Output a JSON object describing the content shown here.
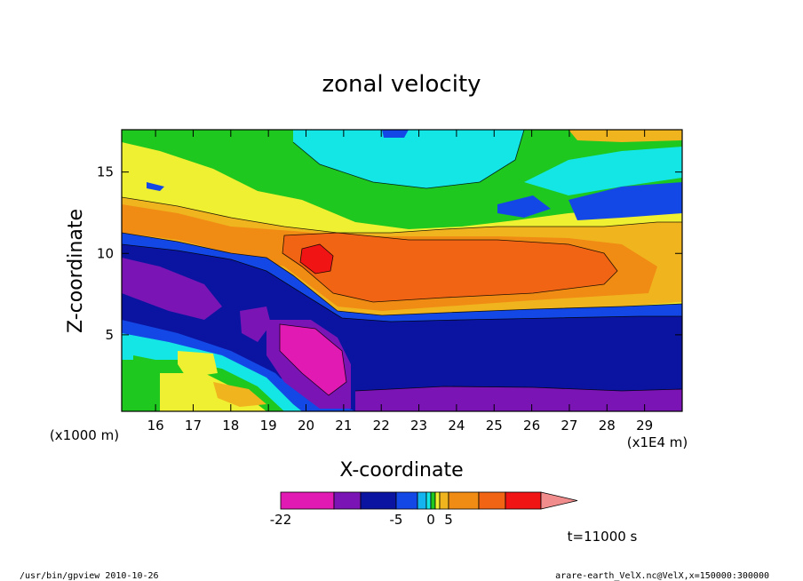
{
  "chart_data": {
    "type": "heatmap",
    "title": "zonal velocity",
    "xlabel": "X-coordinate",
    "ylabel": "Z-coordinate",
    "x_scale_note": "(x1E4 m)",
    "y_scale_note": "(x1000 m)",
    "xlim": [
      15.1,
      30
    ],
    "ylim": [
      0.3,
      17.6
    ],
    "x_ticks": [
      "16",
      "17",
      "18",
      "19",
      "20",
      "21",
      "22",
      "23",
      "24",
      "25",
      "26",
      "27",
      "28",
      "29"
    ],
    "y_ticks": [
      "5",
      "10",
      "15"
    ],
    "x_tick_values": [
      16,
      17,
      18,
      19,
      20,
      21,
      22,
      23,
      24,
      25,
      26,
      27,
      28,
      29
    ],
    "y_tick_values": [
      5,
      10,
      15
    ],
    "colorbar": {
      "labels": [
        {
          "text": "-22",
          "index": 0
        },
        {
          "text": "-5",
          "index": 3
        },
        {
          "text": "0",
          "index": 6
        },
        {
          "text": "5",
          "index": 9
        }
      ],
      "colors": [
        "#e21ab4",
        "#7a14b4",
        "#0a14a0",
        "#1448e6",
        "#14b4f0",
        "#14e6e6",
        "#1ec81e",
        "#f0f032",
        "#f0b41e",
        "#f08c14",
        "#f06414",
        "#f01414",
        "#f08c8c"
      ]
    },
    "time_label": "t=11000 s"
  },
  "footer": {
    "left": "/usr/bin/gpview   2010-10-26",
    "right": "arare-earth_VelX.nc@VelX,x=150000:300000"
  }
}
